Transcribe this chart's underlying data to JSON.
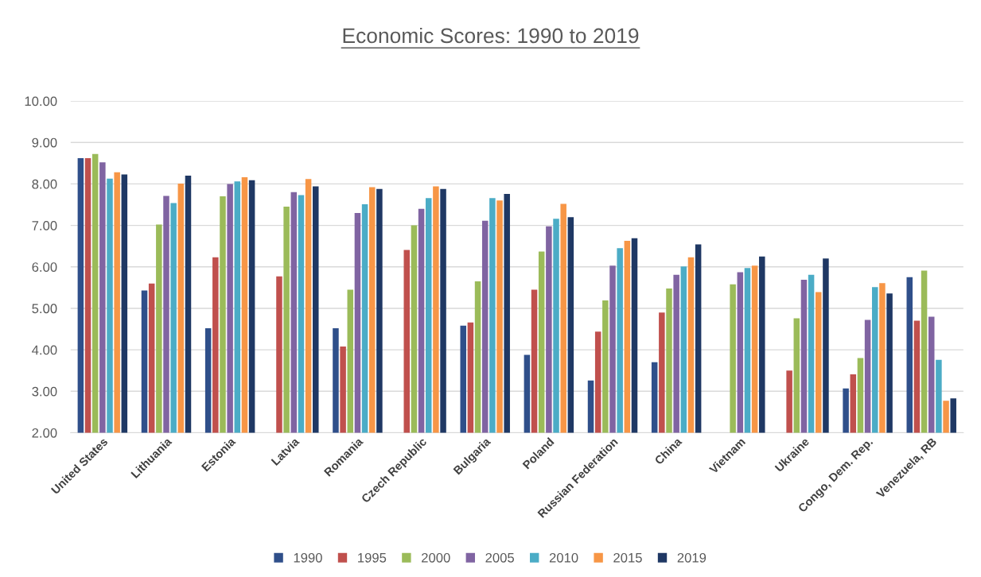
{
  "chart_data": {
    "type": "bar",
    "title": "Economic Scores: 1990 to 2019",
    "categories": [
      "United States",
      "Lithuania",
      "Estonia",
      "Latvia",
      "Romania",
      "Czech Republic",
      "Bulgaria",
      "Poland",
      "Russian Federation",
      "China",
      "Vietnam",
      "Ukraine",
      "Congo, Dem. Rep.",
      "Venezuela, RB"
    ],
    "series": [
      {
        "name": "1990",
        "color": "#2f4f8a",
        "values": [
          8.62,
          5.43,
          4.52,
          null,
          4.52,
          null,
          4.58,
          3.88,
          3.26,
          3.7,
          null,
          null,
          3.07,
          5.75
        ]
      },
      {
        "name": "1995",
        "color": "#c0504d",
        "values": [
          8.62,
          5.6,
          6.23,
          5.77,
          4.08,
          6.41,
          4.66,
          5.45,
          4.44,
          4.9,
          null,
          3.5,
          3.41,
          4.7
        ]
      },
      {
        "name": "2000",
        "color": "#9bbb59",
        "values": [
          8.72,
          7.02,
          7.7,
          7.45,
          5.45,
          7.0,
          5.65,
          6.37,
          5.19,
          5.48,
          5.58,
          4.76,
          3.8,
          5.91
        ]
      },
      {
        "name": "2005",
        "color": "#8064a2",
        "values": [
          8.52,
          7.71,
          8.0,
          7.8,
          7.3,
          7.4,
          7.11,
          6.98,
          6.03,
          5.81,
          5.87,
          5.69,
          4.72,
          4.8
        ]
      },
      {
        "name": "2010",
        "color": "#4bacc6",
        "values": [
          8.13,
          7.54,
          8.06,
          7.73,
          7.51,
          7.66,
          7.66,
          7.16,
          6.45,
          6.01,
          5.97,
          5.81,
          5.51,
          3.76
        ]
      },
      {
        "name": "2015",
        "color": "#f79646",
        "values": [
          8.28,
          8.01,
          8.16,
          8.12,
          7.92,
          7.94,
          7.6,
          7.52,
          6.63,
          6.23,
          6.03,
          5.39,
          5.61,
          2.77
        ]
      },
      {
        "name": "2019",
        "color": "#1f3864",
        "values": [
          8.23,
          8.2,
          8.09,
          7.94,
          7.88,
          7.88,
          7.76,
          7.2,
          6.69,
          6.54,
          6.25,
          6.2,
          5.36,
          2.83
        ]
      }
    ],
    "ylim": [
      2,
      10
    ],
    "yticks": [
      {
        "value": 2,
        "label": "2.00"
      },
      {
        "value": 3,
        "label": "3.00"
      },
      {
        "value": 4,
        "label": "4.00"
      },
      {
        "value": 5,
        "label": "5.00"
      },
      {
        "value": 6,
        "label": "6.00"
      },
      {
        "value": 7,
        "label": "7.00"
      },
      {
        "value": 8,
        "label": "8.00"
      },
      {
        "value": 9,
        "label": "9.00"
      },
      {
        "value": 10,
        "label": "10.00"
      }
    ],
    "grid": "y",
    "legend": "bottom"
  }
}
